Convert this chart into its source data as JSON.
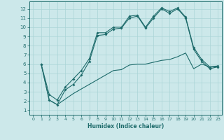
{
  "xlabel": "Humidex (Indice chaleur)",
  "xlim": [
    -0.5,
    23.5
  ],
  "ylim": [
    0.5,
    12.8
  ],
  "yticks": [
    1,
    2,
    3,
    4,
    5,
    6,
    7,
    8,
    9,
    10,
    11,
    12
  ],
  "xticks": [
    0,
    1,
    2,
    3,
    4,
    5,
    6,
    7,
    8,
    9,
    10,
    11,
    12,
    13,
    14,
    15,
    16,
    17,
    18,
    19,
    20,
    21,
    22,
    23
  ],
  "bg_color": "#cce8ea",
  "line_color": "#1e6b6b",
  "grid_color": "#aad4d6",
  "line1_x": [
    1,
    2,
    3,
    4,
    5,
    6,
    7,
    8,
    9,
    10,
    11,
    12,
    13,
    14,
    15,
    16,
    17,
    18,
    19,
    20,
    21,
    22,
    23
  ],
  "line1_y": [
    6.0,
    2.7,
    2.1,
    3.5,
    4.4,
    5.3,
    6.6,
    9.4,
    9.4,
    10.0,
    10.0,
    11.2,
    11.3,
    10.0,
    11.2,
    12.1,
    11.7,
    12.1,
    11.1,
    7.8,
    6.5,
    5.7,
    5.8
  ],
  "line2_x": [
    1,
    2,
    3,
    4,
    5,
    6,
    7,
    8,
    9,
    10,
    11,
    12,
    13,
    14,
    15,
    16,
    17,
    18,
    19,
    20,
    21,
    22,
    23
  ],
  "line2_y": [
    6.0,
    2.1,
    1.6,
    3.2,
    3.8,
    4.8,
    6.3,
    9.1,
    9.2,
    9.8,
    9.9,
    11.0,
    11.2,
    9.9,
    11.0,
    12.0,
    11.5,
    12.0,
    11.0,
    7.6,
    6.3,
    5.5,
    5.7
  ],
  "line3_x": [
    1,
    2,
    3,
    4,
    5,
    6,
    7,
    8,
    9,
    10,
    11,
    12,
    13,
    14,
    15,
    16,
    17,
    18,
    19,
    20,
    21,
    22,
    23
  ],
  "line3_y": [
    6.0,
    2.1,
    1.6,
    2.2,
    2.8,
    3.3,
    3.8,
    4.3,
    4.8,
    5.3,
    5.4,
    5.9,
    6.0,
    6.0,
    6.2,
    6.4,
    6.5,
    6.8,
    7.2,
    5.5,
    6.0,
    5.7,
    5.7
  ]
}
